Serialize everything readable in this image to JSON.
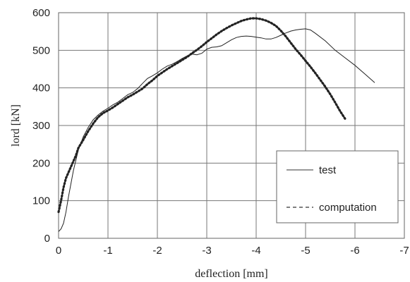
{
  "chart_data": {
    "type": "line",
    "title": "",
    "xlabel": "deflection [mm]",
    "ylabel": "lord [kN]",
    "xlim": [
      0,
      -7
    ],
    "ylim": [
      0,
      600
    ],
    "x_ticks": [
      0,
      -1,
      -2,
      -3,
      -4,
      -5,
      -6,
      -7
    ],
    "x_tick_labels": [
      "0",
      "-1",
      "-2",
      "-3",
      "-4",
      "-5",
      "-6",
      "-7"
    ],
    "y_ticks": [
      0,
      100,
      200,
      300,
      400,
      500,
      600
    ],
    "y_tick_labels": [
      "0",
      "100",
      "200",
      "300",
      "400",
      "500",
      "600"
    ],
    "grid": true,
    "legend_position": "bottom-right",
    "series": [
      {
        "name": "test",
        "style": "solid",
        "points": [
          [
            0.0,
            18
          ],
          [
            -0.05,
            25
          ],
          [
            -0.1,
            40
          ],
          [
            -0.15,
            70
          ],
          [
            -0.2,
            110
          ],
          [
            -0.3,
            180
          ],
          [
            -0.4,
            235
          ],
          [
            -0.5,
            270
          ],
          [
            -0.6,
            295
          ],
          [
            -0.7,
            315
          ],
          [
            -0.8,
            328
          ],
          [
            -0.9,
            338
          ],
          [
            -1.0,
            346
          ],
          [
            -1.1,
            355
          ],
          [
            -1.2,
            362
          ],
          [
            -1.3,
            372
          ],
          [
            -1.4,
            382
          ],
          [
            -1.5,
            388
          ],
          [
            -1.6,
            398
          ],
          [
            -1.7,
            412
          ],
          [
            -1.8,
            425
          ],
          [
            -1.9,
            432
          ],
          [
            -2.0,
            440
          ],
          [
            -2.1,
            450
          ],
          [
            -2.2,
            458
          ],
          [
            -2.3,
            463
          ],
          [
            -2.4,
            470
          ],
          [
            -2.5,
            478
          ],
          [
            -2.6,
            485
          ],
          [
            -2.7,
            490
          ],
          [
            -2.8,
            488
          ],
          [
            -2.9,
            492
          ],
          [
            -3.0,
            503
          ],
          [
            -3.1,
            508
          ],
          [
            -3.2,
            509
          ],
          [
            -3.3,
            512
          ],
          [
            -3.4,
            520
          ],
          [
            -3.5,
            528
          ],
          [
            -3.6,
            534
          ],
          [
            -3.7,
            537
          ],
          [
            -3.8,
            538
          ],
          [
            -3.9,
            537
          ],
          [
            -4.0,
            535
          ],
          [
            -4.1,
            533
          ],
          [
            -4.2,
            530
          ],
          [
            -4.3,
            530
          ],
          [
            -4.4,
            534
          ],
          [
            -4.5,
            540
          ],
          [
            -4.6,
            546
          ],
          [
            -4.7,
            551
          ],
          [
            -4.8,
            554
          ],
          [
            -4.9,
            556
          ],
          [
            -5.0,
            557
          ],
          [
            -5.1,
            554
          ],
          [
            -5.2,
            545
          ],
          [
            -5.4,
            525
          ],
          [
            -5.6,
            500
          ],
          [
            -5.8,
            480
          ],
          [
            -6.0,
            460
          ],
          [
            -6.2,
            437
          ],
          [
            -6.4,
            414
          ]
        ]
      },
      {
        "name": "computation",
        "style": "dotted",
        "points": [
          [
            0.0,
            70
          ],
          [
            -0.05,
            100
          ],
          [
            -0.1,
            135
          ],
          [
            -0.15,
            160
          ],
          [
            -0.2,
            175
          ],
          [
            -0.25,
            190
          ],
          [
            -0.3,
            205
          ],
          [
            -0.35,
            220
          ],
          [
            -0.4,
            240
          ],
          [
            -0.5,
            262
          ],
          [
            -0.6,
            285
          ],
          [
            -0.7,
            305
          ],
          [
            -0.8,
            322
          ],
          [
            -0.9,
            333
          ],
          [
            -1.0,
            340
          ],
          [
            -1.1,
            348
          ],
          [
            -1.2,
            357
          ],
          [
            -1.3,
            366
          ],
          [
            -1.4,
            375
          ],
          [
            -1.5,
            382
          ],
          [
            -1.6,
            390
          ],
          [
            -1.7,
            398
          ],
          [
            -1.8,
            410
          ],
          [
            -1.9,
            420
          ],
          [
            -2.0,
            432
          ],
          [
            -2.1,
            441
          ],
          [
            -2.2,
            450
          ],
          [
            -2.3,
            458
          ],
          [
            -2.4,
            466
          ],
          [
            -2.5,
            474
          ],
          [
            -2.6,
            482
          ],
          [
            -2.7,
            492
          ],
          [
            -2.8,
            501
          ],
          [
            -2.9,
            511
          ],
          [
            -3.0,
            522
          ],
          [
            -3.1,
            532
          ],
          [
            -3.2,
            542
          ],
          [
            -3.3,
            551
          ],
          [
            -3.4,
            559
          ],
          [
            -3.5,
            566
          ],
          [
            -3.6,
            572
          ],
          [
            -3.7,
            578
          ],
          [
            -3.8,
            582
          ],
          [
            -3.9,
            585
          ],
          [
            -4.0,
            585
          ],
          [
            -4.1,
            583
          ],
          [
            -4.2,
            579
          ],
          [
            -4.3,
            573
          ],
          [
            -4.4,
            565
          ],
          [
            -4.5,
            552
          ],
          [
            -4.6,
            537
          ],
          [
            -4.7,
            520
          ],
          [
            -4.8,
            503
          ],
          [
            -4.9,
            488
          ],
          [
            -5.0,
            472
          ],
          [
            -5.1,
            456
          ],
          [
            -5.2,
            439
          ],
          [
            -5.3,
            421
          ],
          [
            -5.4,
            403
          ],
          [
            -5.5,
            383
          ],
          [
            -5.6,
            361
          ],
          [
            -5.7,
            338
          ],
          [
            -5.8,
            318
          ]
        ]
      }
    ]
  }
}
